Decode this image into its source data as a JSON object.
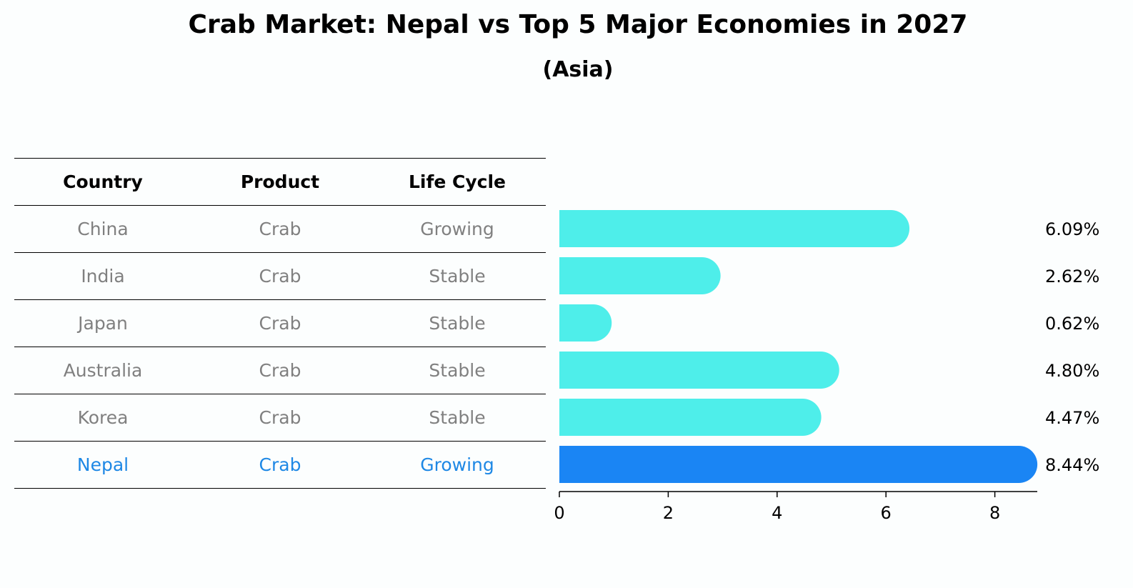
{
  "title": "Crab Market: Nepal vs Top 5 Major Economies in 2027",
  "subtitle": "(Asia)",
  "table": {
    "headers": [
      "Country",
      "Product",
      "Life Cycle"
    ],
    "rows": [
      [
        "China",
        "Crab",
        "Growing"
      ],
      [
        "India",
        "Crab",
        "Stable"
      ],
      [
        "Japan",
        "Crab",
        "Stable"
      ],
      [
        "Australia",
        "Crab",
        "Stable"
      ],
      [
        "Korea",
        "Crab",
        "Stable"
      ],
      [
        "Nepal",
        "Crab",
        "Growing"
      ]
    ]
  },
  "colors": {
    "bar": "#4eeeea",
    "highlight_bar": "#1a85f4",
    "highlight_text": "#1e88e5",
    "muted_text": "#808080"
  },
  "chart_data": {
    "type": "bar",
    "orientation": "horizontal",
    "categories": [
      "China",
      "India",
      "Japan",
      "Australia",
      "Korea",
      "Nepal"
    ],
    "values": [
      6.09,
      2.62,
      0.62,
      4.8,
      4.47,
      8.44
    ],
    "value_labels": [
      "6.09%",
      "2.62%",
      "0.62%",
      "4.80%",
      "4.47%",
      "8.44%"
    ],
    "highlight": "Nepal",
    "xlim": [
      0,
      8.9
    ],
    "xticks": [
      0,
      2,
      4,
      6,
      8
    ],
    "title": "Crab Market: Nepal vs Top 5 Major Economies in 2027",
    "subtitle": "(Asia)",
    "xlabel": "",
    "ylabel": ""
  }
}
